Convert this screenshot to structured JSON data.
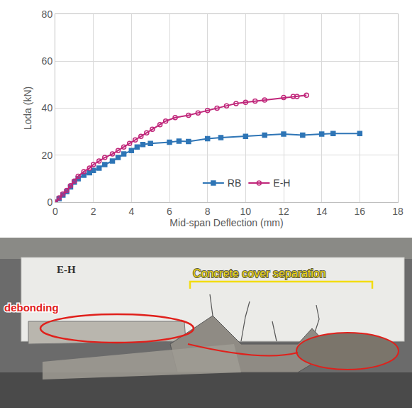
{
  "chart_data": {
    "type": "line",
    "x_label": "Mid-span Deflection (mm)",
    "y_label": "Loda (kN)",
    "xlim": [
      0,
      18
    ],
    "xticks": [
      0,
      2,
      4,
      6,
      8,
      10,
      12,
      14,
      16,
      18
    ],
    "ylim": [
      0,
      80
    ],
    "yticks": [
      0,
      20,
      40,
      60,
      80
    ],
    "grid": true,
    "legend": "bottom",
    "series": [
      {
        "name": "RB",
        "color": "#2e75b6",
        "marker": "square",
        "line_style": "solid",
        "x": [
          0,
          0.2,
          0.4,
          0.6,
          0.8,
          1,
          1.2,
          1.5,
          1.8,
          2,
          2.3,
          2.6,
          3,
          3.3,
          3.6,
          4,
          4.3,
          4.6,
          5,
          6,
          6.5,
          7,
          8,
          8.7,
          10,
          11,
          12,
          13,
          14,
          14.6,
          16
        ],
        "values": [
          0,
          1.5,
          3,
          4.5,
          6.5,
          8.5,
          10,
          11.5,
          12.5,
          13.5,
          14.5,
          16,
          17.5,
          19,
          20.5,
          22,
          23.5,
          24.5,
          25,
          25.5,
          26,
          25.8,
          27,
          27.5,
          28,
          28.5,
          29,
          28.5,
          29,
          29.2,
          29.2
        ]
      },
      {
        "name": "E-H",
        "color": "#c0267a",
        "marker": "circle",
        "line_style": "solid",
        "x": [
          0,
          0.2,
          0.4,
          0.6,
          0.8,
          1,
          1.2,
          1.5,
          1.8,
          2,
          2.3,
          2.6,
          3,
          3.3,
          3.6,
          3.9,
          4.2,
          4.5,
          4.8,
          5.1,
          5.5,
          5.8,
          6.3,
          7,
          7.5,
          8,
          8.5,
          9,
          9.5,
          10,
          10.5,
          11,
          12,
          12.5,
          12.7,
          13.2
        ],
        "values": [
          0,
          1.8,
          3.5,
          5,
          7,
          9,
          11,
          13,
          14.5,
          16,
          17.5,
          19,
          20.5,
          22,
          23.5,
          25,
          26.5,
          28,
          29.5,
          31,
          33,
          34.5,
          36,
          37,
          38,
          39,
          40,
          41,
          42,
          42.5,
          43,
          43.5,
          44.5,
          45,
          45,
          45.5
        ]
      }
    ]
  },
  "photo": {
    "beam_label": "E-H",
    "annotations": [
      "debonding",
      "Concrete cover separation"
    ]
  }
}
